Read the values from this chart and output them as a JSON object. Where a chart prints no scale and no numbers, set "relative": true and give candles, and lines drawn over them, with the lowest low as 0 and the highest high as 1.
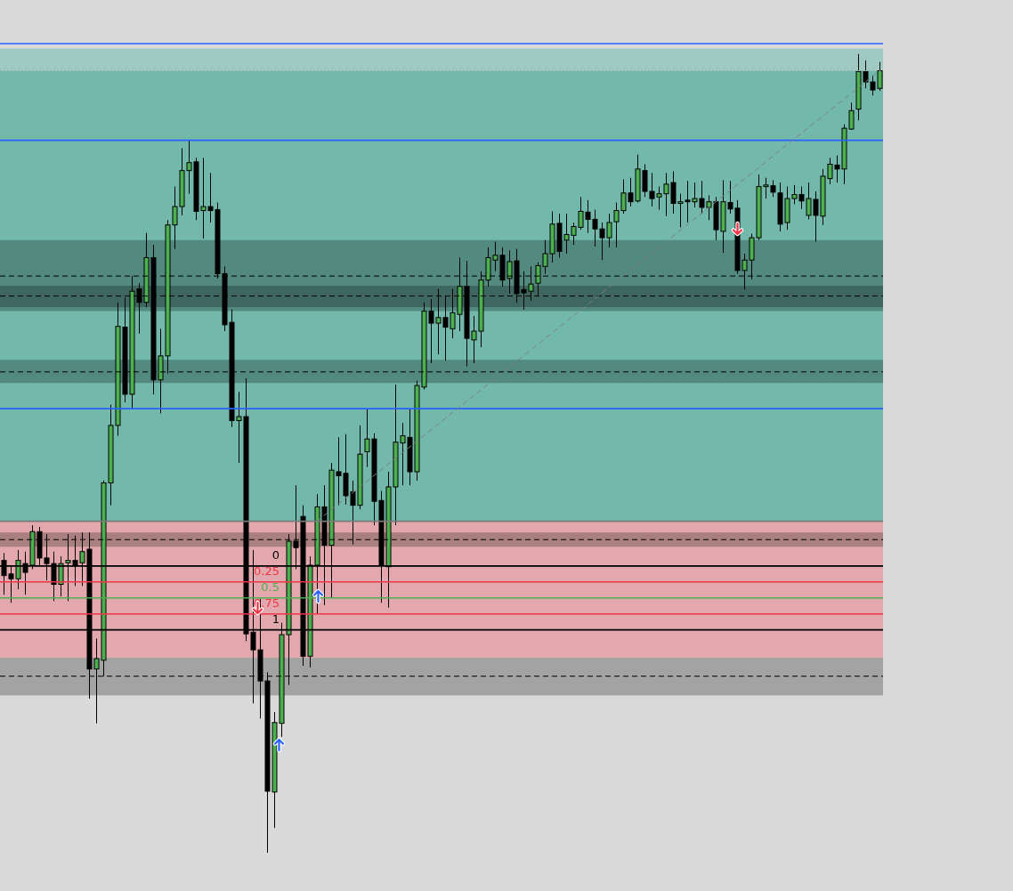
{
  "chart_data": {
    "type": "candlestick",
    "relative": true,
    "tick_labels": false,
    "categories": [
      null,
      null,
      null,
      null,
      null,
      null,
      null,
      null,
      null,
      null,
      null,
      null,
      null,
      null,
      null,
      null,
      null,
      null,
      null,
      null,
      null,
      null,
      null,
      null,
      null,
      null,
      null,
      null,
      null,
      null,
      null,
      null,
      null,
      null,
      null,
      null,
      null,
      null,
      null,
      null,
      null,
      null,
      null,
      null,
      null,
      null,
      null,
      null,
      null,
      null,
      null,
      null,
      null,
      null,
      null,
      null,
      null,
      null,
      null,
      null,
      null,
      null,
      null,
      null,
      null,
      null,
      null,
      null,
      null,
      null,
      null,
      null,
      null,
      null,
      null,
      null,
      null,
      null,
      null,
      null,
      null,
      null,
      null,
      null,
      null,
      null,
      null,
      null,
      null,
      null,
      null,
      null,
      null,
      null,
      null,
      null,
      null,
      null,
      null,
      null,
      null,
      null,
      null,
      null,
      null,
      null,
      null,
      null,
      null,
      null,
      null,
      null,
      null,
      null,
      null,
      null,
      null,
      null,
      null,
      null,
      null,
      null,
      null,
      null
    ],
    "ohlc": [
      [
        0.366,
        0.375,
        0.323,
        0.347
      ],
      [
        0.349,
        0.36,
        0.313,
        0.343
      ],
      [
        0.343,
        0.379,
        0.33,
        0.366
      ],
      [
        0.362,
        0.377,
        0.323,
        0.351
      ],
      [
        0.36,
        0.41,
        0.355,
        0.402
      ],
      [
        0.402,
        0.408,
        0.36,
        0.369
      ],
      [
        0.369,
        0.399,
        0.341,
        0.362
      ],
      [
        0.362,
        0.377,
        0.315,
        0.336
      ],
      [
        0.336,
        0.371,
        0.321,
        0.362
      ],
      [
        0.363,
        0.399,
        0.315,
        0.366
      ],
      [
        0.366,
        0.397,
        0.334,
        0.359
      ],
      [
        0.363,
        0.401,
        0.334,
        0.377
      ],
      [
        0.38,
        0.401,
        0.193,
        0.23
      ],
      [
        0.23,
        0.268,
        0.162,
        0.243
      ],
      [
        0.241,
        0.466,
        0.221,
        0.463
      ],
      [
        0.463,
        0.561,
        0.435,
        0.535
      ],
      [
        0.535,
        0.689,
        0.522,
        0.659
      ],
      [
        0.658,
        0.695,
        0.564,
        0.574
      ],
      [
        0.574,
        0.722,
        0.555,
        0.703
      ],
      [
        0.706,
        0.713,
        0.65,
        0.689
      ],
      [
        0.689,
        0.776,
        0.683,
        0.745
      ],
      [
        0.745,
        0.761,
        0.574,
        0.592
      ],
      [
        0.592,
        0.656,
        0.55,
        0.622
      ],
      [
        0.622,
        0.792,
        0.6,
        0.786
      ],
      [
        0.786,
        0.834,
        0.756,
        0.809
      ],
      [
        0.809,
        0.882,
        0.798,
        0.854
      ],
      [
        0.854,
        0.892,
        0.825,
        0.864
      ],
      [
        0.865,
        0.87,
        0.792,
        0.803
      ],
      [
        0.804,
        0.87,
        0.769,
        0.809
      ],
      [
        0.809,
        0.851,
        0.789,
        0.804
      ],
      [
        0.805,
        0.814,
        0.719,
        0.725
      ],
      [
        0.725,
        0.734,
        0.653,
        0.661
      ],
      [
        0.664,
        0.68,
        0.533,
        0.541
      ],
      [
        0.541,
        0.577,
        0.488,
        0.546
      ],
      [
        0.546,
        0.594,
        0.265,
        0.274
      ],
      [
        0.276,
        0.379,
        0.187,
        0.254
      ],
      [
        0.254,
        0.318,
        0.168,
        0.215
      ],
      [
        0.215,
        0.226,
        0,
        0.077
      ],
      [
        0.076,
        0.176,
        0.031,
        0.163
      ],
      [
        0.162,
        0.288,
        0.145,
        0.273
      ],
      [
        0.273,
        0.399,
        0.21,
        0.39
      ],
      [
        0.39,
        0.46,
        0.355,
        0.382
      ],
      [
        0.421,
        0.435,
        0.234,
        0.246
      ],
      [
        0.246,
        0.371,
        0.232,
        0.36
      ],
      [
        0.36,
        0.449,
        0.299,
        0.433
      ],
      [
        0.433,
        0.46,
        0.31,
        0.385
      ],
      [
        0.385,
        0.488,
        0.319,
        0.479
      ],
      [
        0.477,
        0.52,
        0.435,
        0.472
      ],
      [
        0.475,
        0.524,
        0.436,
        0.447
      ],
      [
        0.452,
        0.466,
        0.386,
        0.435
      ],
      [
        0.435,
        0.535,
        0.43,
        0.499
      ],
      [
        0.502,
        0.555,
        0.483,
        0.518
      ],
      [
        0.518,
        0.525,
        0.41,
        0.44
      ],
      [
        0.441,
        0.453,
        0.313,
        0.36
      ],
      [
        0.358,
        0.477,
        0.307,
        0.458
      ],
      [
        0.458,
        0.586,
        0.41,
        0.514
      ],
      [
        0.513,
        0.538,
        0.46,
        0.522
      ],
      [
        0.52,
        0.555,
        0.46,
        0.477
      ],
      [
        0.477,
        0.591,
        0.466,
        0.585
      ],
      [
        0.583,
        0.689,
        0.58,
        0.678
      ],
      [
        0.678,
        0.693,
        0.613,
        0.663
      ],
      [
        0.663,
        0.706,
        0.624,
        0.67
      ],
      [
        0.67,
        0.697,
        0.616,
        0.658
      ],
      [
        0.656,
        0.706,
        0.644,
        0.676
      ],
      [
        0.674,
        0.745,
        0.653,
        0.709
      ],
      [
        0.709,
        0.741,
        0.609,
        0.644
      ],
      [
        0.642,
        0.672,
        0.613,
        0.653
      ],
      [
        0.653,
        0.728,
        0.633,
        0.717
      ],
      [
        0.717,
        0.758,
        0.709,
        0.745
      ],
      [
        0.742,
        0.765,
        0.728,
        0.748
      ],
      [
        0.748,
        0.758,
        0.709,
        0.717
      ],
      [
        0.719,
        0.754,
        0.7,
        0.74
      ],
      [
        0.741,
        0.756,
        0.689,
        0.7
      ],
      [
        0.705,
        0.728,
        0.68,
        0.701
      ],
      [
        0.703,
        0.734,
        0.691,
        0.712
      ],
      [
        0.713,
        0.739,
        0.698,
        0.735
      ],
      [
        0.734,
        0.767,
        0.725,
        0.75
      ],
      [
        0.75,
        0.803,
        0.739,
        0.787
      ],
      [
        0.788,
        0.8,
        0.745,
        0.753
      ],
      [
        0.767,
        0.8,
        0.75,
        0.774
      ],
      [
        0.773,
        0.789,
        0.761,
        0.784
      ],
      [
        0.783,
        0.821,
        0.78,
        0.803
      ],
      [
        0.802,
        0.817,
        0.776,
        0.793
      ],
      [
        0.793,
        0.805,
        0.759,
        0.781
      ],
      [
        0.781,
        0.789,
        0.742,
        0.77
      ],
      [
        0.77,
        0.8,
        0.758,
        0.789
      ],
      [
        0.79,
        0.814,
        0.758,
        0.804
      ],
      [
        0.804,
        0.843,
        0.8,
        0.826
      ],
      [
        0.826,
        0.845,
        0.809,
        0.815
      ],
      [
        0.816,
        0.874,
        0.814,
        0.856
      ],
      [
        0.854,
        0.862,
        0.821,
        0.828
      ],
      [
        0.828,
        0.851,
        0.809,
        0.819
      ],
      [
        0.821,
        0.834,
        0.805,
        0.825
      ],
      [
        0.825,
        0.851,
        0.797,
        0.837
      ],
      [
        0.839,
        0.853,
        0.8,
        0.813
      ],
      [
        0.813,
        0.825,
        0.783,
        0.815
      ],
      [
        0.817,
        0.841,
        0.789,
        0.815
      ],
      [
        0.815,
        0.839,
        0.808,
        0.819
      ],
      [
        0.819,
        0.841,
        0.8,
        0.808
      ],
      [
        0.808,
        0.823,
        0.792,
        0.815
      ],
      [
        0.815,
        0.821,
        0.767,
        0.78
      ],
      [
        0.778,
        0.842,
        0.751,
        0.815
      ],
      [
        0.814,
        0.841,
        0.8,
        0.806
      ],
      [
        0.807,
        0.817,
        0.725,
        0.729
      ],
      [
        0.729,
        0.75,
        0.705,
        0.742
      ],
      [
        0.742,
        0.775,
        0.718,
        0.77
      ],
      [
        0.77,
        0.849,
        0.767,
        0.834
      ],
      [
        0.834,
        0.845,
        0.819,
        0.836
      ],
      [
        0.835,
        0.842,
        0.821,
        0.827
      ],
      [
        0.826,
        0.839,
        0.778,
        0.787
      ],
      [
        0.789,
        0.834,
        0.78,
        0.819
      ],
      [
        0.819,
        0.836,
        0.812,
        0.824
      ],
      [
        0.824,
        0.834,
        0.806,
        0.816
      ],
      [
        0.798,
        0.839,
        0.793,
        0.819
      ],
      [
        0.818,
        0.828,
        0.765,
        0.798
      ],
      [
        0.797,
        0.856,
        0.786,
        0.847
      ],
      [
        0.844,
        0.87,
        0.837,
        0.862
      ],
      [
        0.861,
        0.873,
        0.839,
        0.856
      ],
      [
        0.856,
        0.912,
        0.837,
        0.907
      ],
      [
        0.906,
        0.939,
        0.905,
        0.929
      ],
      [
        0.931,
        1,
        0.917,
        0.978
      ],
      [
        0.978,
        0.992,
        0.957,
        0.965
      ],
      [
        0.965,
        0.973,
        0.948,
        0.955
      ],
      [
        0.957,
        0.99,
        0.954,
        0.979
      ]
    ],
    "colors": [
      "#000000",
      "#000000",
      "#4caf50",
      "#000000",
      "#4caf50",
      "#000000",
      "#000000",
      "#000000",
      "#4caf50",
      "#4caf50",
      "#000000",
      "#4caf50",
      "#000000",
      "#4caf50",
      "#4caf50",
      "#4caf50",
      "#4caf50",
      "#000000",
      "#4caf50",
      "#000000",
      "#4caf50",
      "#000000",
      "#4caf50",
      "#4caf50",
      "#4caf50",
      "#4caf50",
      "#4caf50",
      "#000000",
      "#4caf50",
      "#000000",
      "#000000",
      "#000000",
      "#000000",
      "#4caf50",
      "#000000",
      "#000000",
      "#000000",
      "#000000",
      "#4caf50",
      "#4caf50",
      "#4caf50",
      "#000000",
      "#000000",
      "#4caf50",
      "#4caf50",
      "#000000",
      "#4caf50",
      "#000000",
      "#000000",
      "#000000",
      "#4caf50",
      "#4caf50",
      "#000000",
      "#000000",
      "#4caf50",
      "#4caf50",
      "#4caf50",
      "#000000",
      "#4caf50",
      "#4caf50",
      "#000000",
      "#4caf50",
      "#000000",
      "#4caf50",
      "#4caf50",
      "#000000",
      "#4caf50",
      "#4caf50",
      "#4caf50",
      "#4caf50",
      "#000000",
      "#4caf50",
      "#000000",
      "#000000",
      "#4caf50",
      "#4caf50",
      "#4caf50",
      "#4caf50",
      "#000000",
      "#4caf50",
      "#4caf50",
      "#4caf50",
      "#000000",
      "#000000",
      "#000000",
      "#4caf50",
      "#4caf50",
      "#4caf50",
      "#000000",
      "#4caf50",
      "#000000",
      "#000000",
      "#4caf50",
      "#4caf50",
      "#000000",
      "#4caf50",
      "#000000",
      "#4caf50",
      "#000000",
      "#4caf50",
      "#000000",
      "#4caf50",
      "#000000",
      "#000000",
      "#4caf50",
      "#4caf50",
      "#4caf50",
      "#4caf50",
      "#000000",
      "#000000",
      "#4caf50",
      "#4caf50",
      "#000000",
      "#4caf50",
      "#000000",
      "#4caf50",
      "#4caf50",
      "#000000",
      "#4caf50",
      "#4caf50",
      "#4caf50",
      "#000000",
      "#000000",
      "#4caf50"
    ],
    "series": [
      {
        "type": "line",
        "color": "#808080",
        "line_style": "dashed",
        "values": [
          null,
          null,
          null,
          null,
          null,
          null,
          null,
          null,
          null,
          null,
          null,
          null,
          null,
          null,
          null,
          null,
          null,
          null,
          null,
          null,
          null,
          null,
          null,
          null,
          null,
          null,
          null,
          null,
          null,
          null,
          null,
          null,
          null,
          null,
          null,
          null,
          null,
          null,
          null,
          null,
          null,
          null,
          null,
          null,
          0.415,
          null,
          null,
          null,
          null,
          null,
          null,
          null,
          null,
          null,
          null,
          null,
          null,
          null,
          null,
          null,
          null,
          null,
          null,
          null,
          null,
          null,
          null,
          null,
          null,
          null,
          null,
          null,
          null,
          null,
          null,
          null,
          null,
          null,
          null,
          null,
          null,
          null,
          null,
          null,
          null,
          null,
          null,
          null,
          null,
          null,
          null,
          null,
          null,
          null,
          null,
          null,
          null,
          null,
          null,
          null,
          null,
          null,
          null,
          null,
          null,
          null,
          null,
          null,
          null,
          null,
          null,
          null,
          null,
          null,
          null,
          null,
          null,
          null,
          null,
          null,
          null,
          null,
          null,
          0.979
        ]
      }
    ],
    "bands": [
      {
        "axis": "y",
        "from": 0.979,
        "to": 1.007,
        "color": "#9fcac1"
      },
      {
        "axis": "y",
        "from": 0.415,
        "to": 0.979,
        "color": "#72b9ac"
      },
      {
        "axis": "y",
        "from": 0.206,
        "to": 0.415,
        "color": "#e3a8ad"
      },
      {
        "axis": "y",
        "from": 0.678,
        "to": 0.767,
        "color": "#528a80"
      },
      {
        "axis": "y",
        "from": 0.683,
        "to": 0.71,
        "color": "#3e6760"
      },
      {
        "axis": "y",
        "from": 0.588,
        "to": 0.617,
        "color": "#528a80"
      },
      {
        "axis": "y",
        "from": 0.383,
        "to": 0.401,
        "color": "#a9807f"
      },
      {
        "axis": "y",
        "from": 0.197,
        "to": 0.244,
        "color": "#a3a3a3"
      }
    ],
    "ref_lines": [
      {
        "axis": "y",
        "value": 1.013,
        "color": "#2962ff"
      },
      {
        "axis": "y",
        "value": 0.892,
        "color": "#2962ff"
      },
      {
        "axis": "y",
        "value": 0.556,
        "color": "#2962ff"
      },
      {
        "axis": "y",
        "value": 0.979,
        "color": "#9a9a9a",
        "line_style": "dotted"
      },
      {
        "axis": "y",
        "value": 0.415,
        "color": "#7a7a7a"
      },
      {
        "axis": "y",
        "value": 0.722,
        "color": "#000000",
        "line_style": "dashed"
      },
      {
        "axis": "y",
        "value": 0.697,
        "color": "#000000",
        "line_style": "dashed"
      },
      {
        "axis": "y",
        "value": 0.602,
        "color": "#000000",
        "line_style": "dashed"
      },
      {
        "axis": "y",
        "value": 0.392,
        "color": "#000000",
        "line_style": "dashed"
      },
      {
        "axis": "y",
        "value": 0.221,
        "color": "#000000",
        "line_style": "dashed"
      },
      {
        "axis": "y",
        "value": 0.359,
        "color": "#000000"
      },
      {
        "axis": "y",
        "value": 0.339,
        "color": "#f23645"
      },
      {
        "axis": "y",
        "value": 0.319,
        "color": "#4caf50"
      },
      {
        "axis": "y",
        "value": 0.299,
        "color": "#f23645"
      },
      {
        "axis": "y",
        "value": 0.279,
        "color": "#000000"
      }
    ],
    "annotations": [
      {
        "text": "0",
        "y": 0.359
      },
      {
        "text": "0.25",
        "y": 0.339
      },
      {
        "text": "0.5",
        "y": 0.319
      },
      {
        "text": "0.75",
        "y": 0.299
      },
      {
        "text": "1",
        "y": 0.279
      }
    ]
  }
}
